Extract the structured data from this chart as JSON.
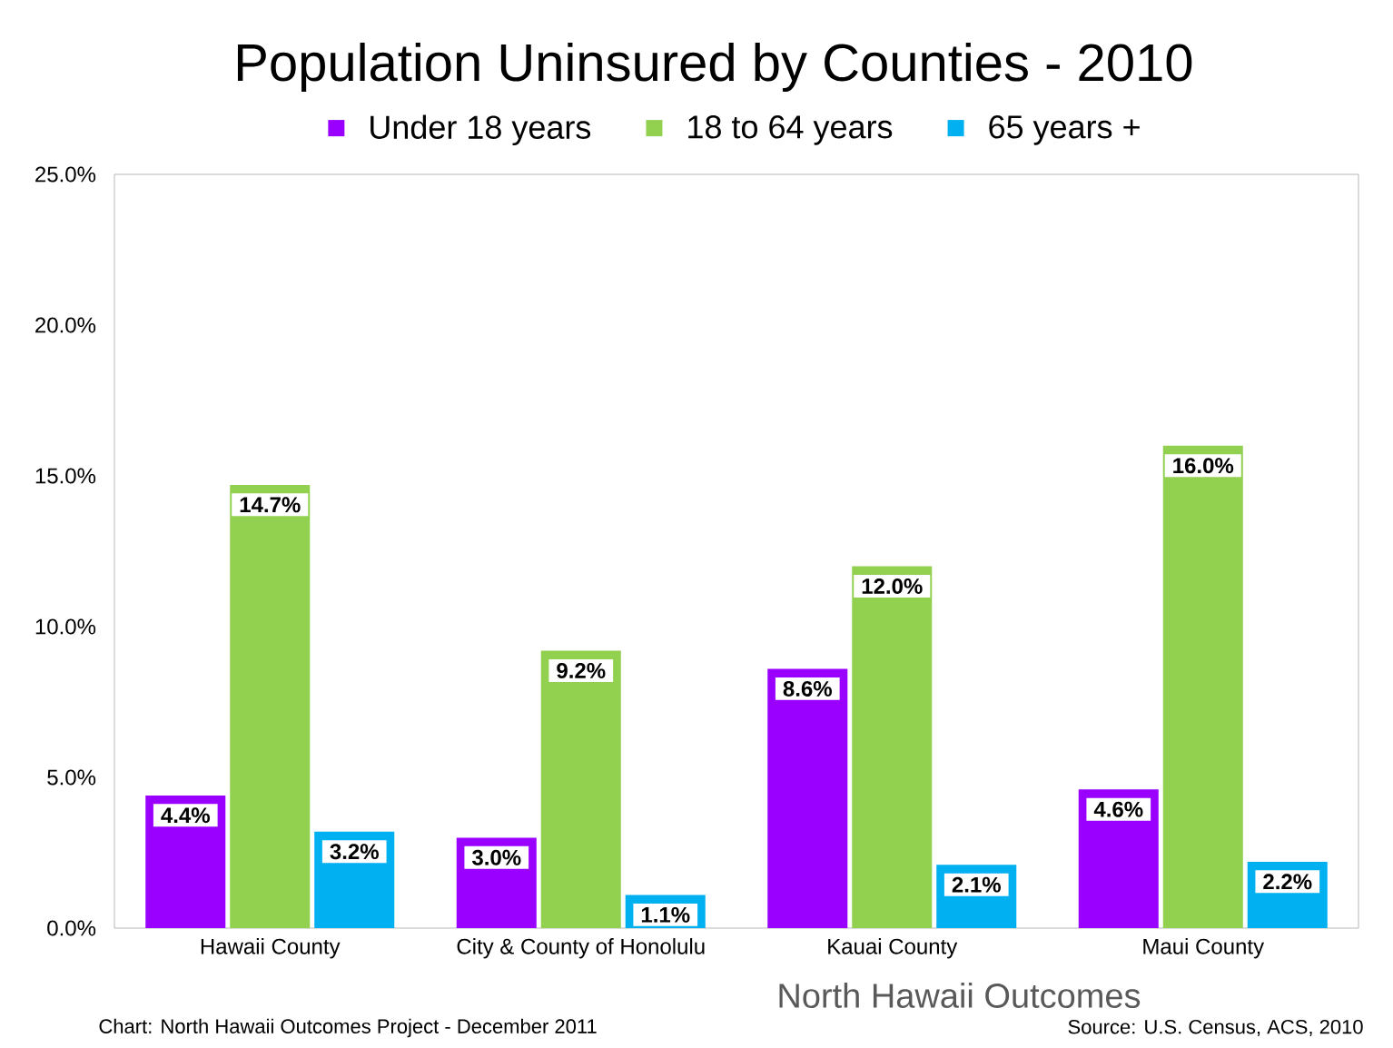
{
  "chart_data": {
    "type": "bar",
    "title": "Population Uninsured  by Counties - 2010",
    "categories": [
      "Hawaii County",
      "City & County of Honolulu",
      "Kauai County",
      "Maui County"
    ],
    "series": [
      {
        "name": "Under 18 years",
        "color": "#9900ff",
        "values": [
          4.4,
          3.0,
          8.6,
          4.6
        ],
        "value_labels": [
          "4.4%",
          "3.0%",
          "8.6%",
          "4.6%"
        ]
      },
      {
        "name": "18 to 64 years",
        "color": "#92d050",
        "values": [
          14.7,
          9.2,
          12.0,
          16.0
        ],
        "value_labels": [
          "14.7%",
          "9.2%",
          "12.0%",
          "16.0%"
        ]
      },
      {
        "name": "65 years +",
        "color": "#00b0f0",
        "values": [
          3.2,
          1.1,
          2.1,
          2.2
        ],
        "value_labels": [
          "3.2%",
          "1.1%",
          "2.1%",
          "2.2%"
        ]
      }
    ],
    "ylim": [
      0,
      25
    ],
    "yticks": [
      {
        "value": 0,
        "label": "0.0%"
      },
      {
        "value": 5,
        "label": "5.0%"
      },
      {
        "value": 10,
        "label": "10.0%"
      },
      {
        "value": 15,
        "label": "15.0%"
      },
      {
        "value": 20,
        "label": "20.0%"
      },
      {
        "value": 25,
        "label": "25.0%"
      }
    ],
    "legend": "top",
    "annotations": [
      "North Hawaii Outcomes",
      "Chart:  North Hawaii Outcomes Project - December 2011",
      "Source:  U.S. Census, ACS, 2010"
    ]
  }
}
